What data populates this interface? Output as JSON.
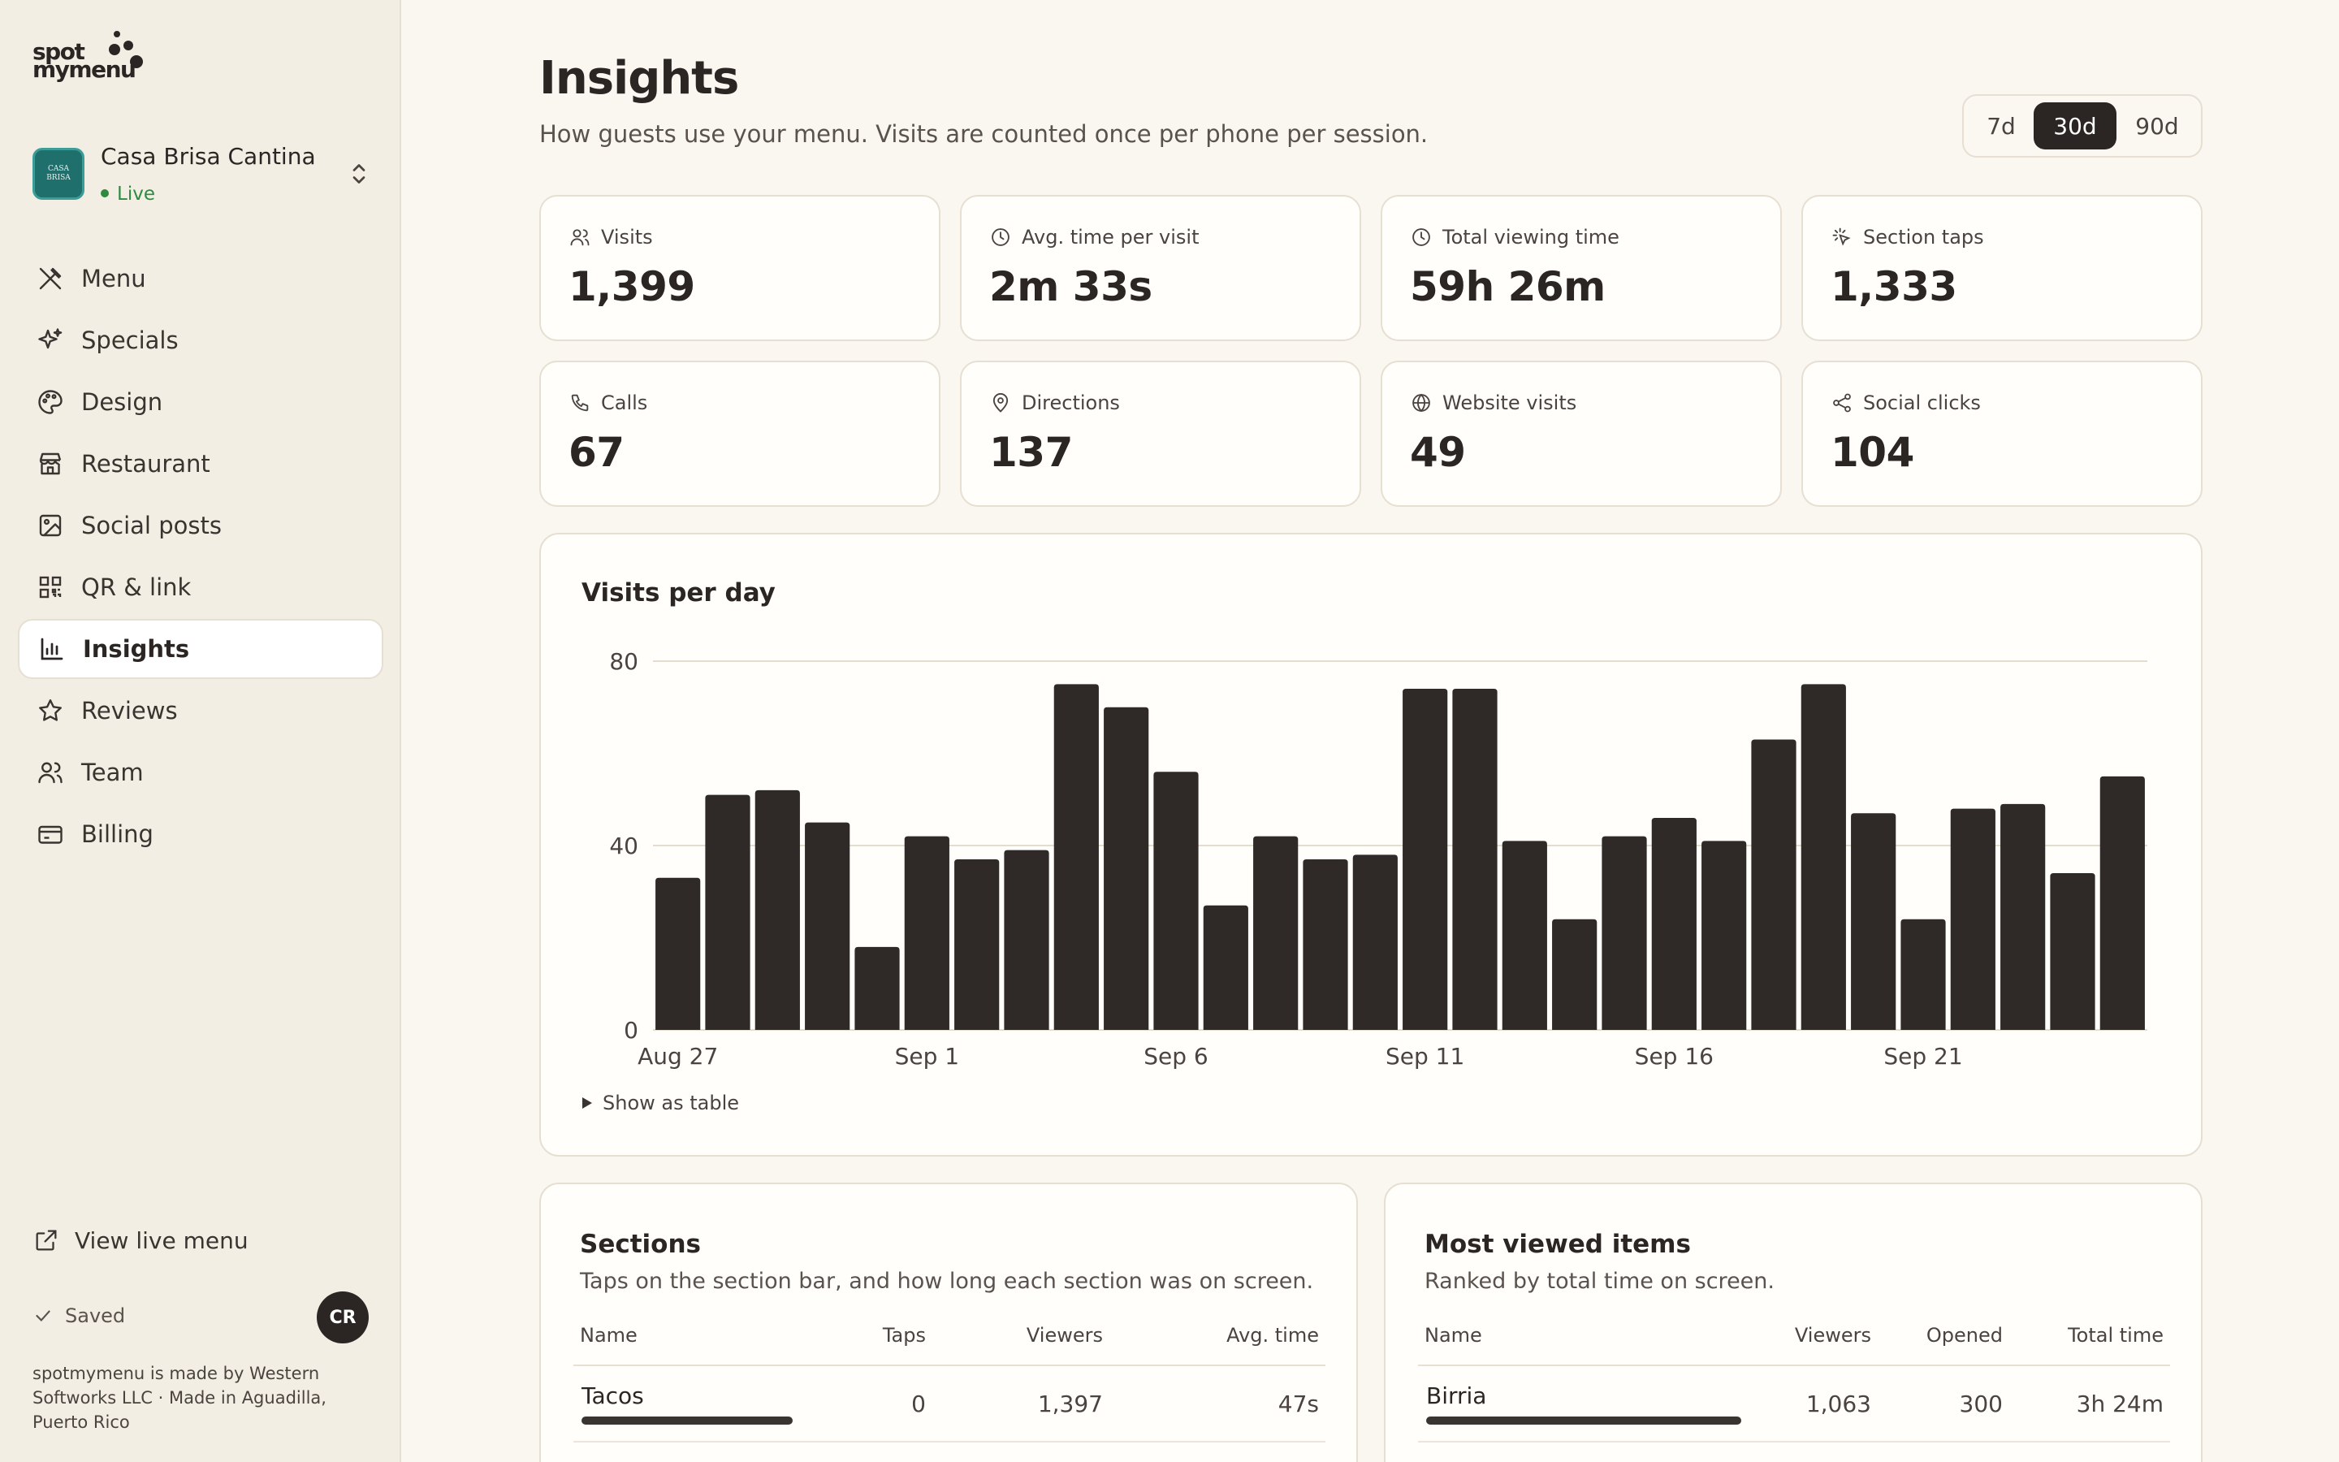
{
  "brand": {
    "line1": "spot",
    "line2": "mymenu"
  },
  "workspace": {
    "name": "Casa Brisa Cantina",
    "status": "Live",
    "avatar_text": "CASA BRISA",
    "status_color": "#2e8a3f"
  },
  "nav": {
    "items": [
      {
        "label": "Menu",
        "icon": "utensils-icon"
      },
      {
        "label": "Specials",
        "icon": "sparkles-icon"
      },
      {
        "label": "Design",
        "icon": "palette-icon"
      },
      {
        "label": "Restaurant",
        "icon": "store-icon"
      },
      {
        "label": "Social posts",
        "icon": "image-icon"
      },
      {
        "label": "QR & link",
        "icon": "qr-code-icon"
      },
      {
        "label": "Insights",
        "icon": "bar-chart-icon",
        "active": true
      },
      {
        "label": "Reviews",
        "icon": "star-icon"
      },
      {
        "label": "Team",
        "icon": "users-icon"
      },
      {
        "label": "Billing",
        "icon": "credit-card-icon"
      }
    ]
  },
  "sidebar_footer": {
    "view_live": "View live menu",
    "saved": "Saved",
    "user_initials": "CR",
    "footnote": "spotmymenu is made by Western Softworks LLC · Made in Aguadilla, Puerto Rico"
  },
  "header": {
    "title": "Insights",
    "subtitle": "How guests use your menu. Visits are counted once per phone per session."
  },
  "range": {
    "options": [
      "7d",
      "30d",
      "90d"
    ],
    "selected": "30d"
  },
  "stats": [
    {
      "label": "Visits",
      "value": "1,399",
      "icon": "users-icon"
    },
    {
      "label": "Avg. time per visit",
      "value": "2m 33s",
      "icon": "clock-icon"
    },
    {
      "label": "Total viewing time",
      "value": "59h 26m",
      "icon": "clock-icon"
    },
    {
      "label": "Section taps",
      "value": "1,333",
      "icon": "tap-icon"
    },
    {
      "label": "Calls",
      "value": "67",
      "icon": "phone-icon"
    },
    {
      "label": "Directions",
      "value": "137",
      "icon": "map-pin-icon"
    },
    {
      "label": "Website visits",
      "value": "49",
      "icon": "globe-icon"
    },
    {
      "label": "Social clicks",
      "value": "104",
      "icon": "share-icon"
    }
  ],
  "chart": {
    "show_table": "Show as table"
  },
  "chart_data": {
    "type": "bar",
    "title": "Visits per day",
    "x_tick_labels": [
      "Aug 27",
      "Sep 1",
      "Sep 6",
      "Sep 11",
      "Sep 16",
      "Sep 21"
    ],
    "x_tick_index": [
      0,
      5,
      10,
      15,
      20,
      25
    ],
    "y_ticks": [
      0,
      40,
      80
    ],
    "ylim": [
      0,
      80
    ],
    "grid": true,
    "bar_color": "#2f2a28",
    "values": [
      33,
      51,
      52,
      45,
      18,
      42,
      37,
      39,
      75,
      70,
      56,
      27,
      42,
      37,
      38,
      74,
      74,
      41,
      24,
      42,
      46,
      41,
      63,
      75,
      47,
      24,
      48,
      49,
      34,
      55
    ]
  },
  "sections": {
    "title": "Sections",
    "subtitle": "Taps on the section bar, and how long each section was on screen.",
    "columns": [
      "Name",
      "Taps",
      "Viewers",
      "Avg. time"
    ],
    "rows": [
      {
        "name": "Tacos",
        "taps": "0",
        "viewers": "1,397",
        "avg_time": "47s",
        "share": 1.0
      }
    ]
  },
  "items": {
    "title": "Most viewed items",
    "subtitle": "Ranked by total time on screen.",
    "columns": [
      "Name",
      "Viewers",
      "Opened",
      "Total time"
    ],
    "rows": [
      {
        "name": "Birria",
        "viewers": "1,063",
        "opened": "300",
        "total_time": "3h 24m",
        "share": 1.0
      }
    ]
  }
}
